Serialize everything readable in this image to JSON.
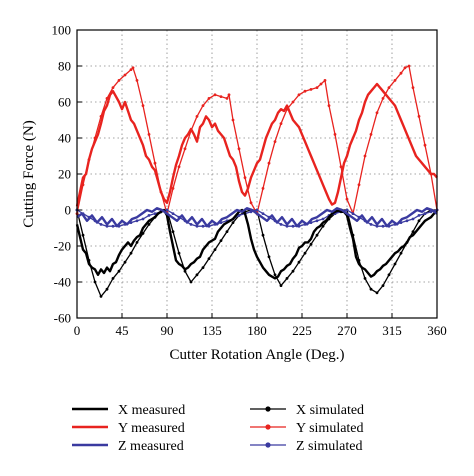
{
  "chart_data": {
    "type": "line",
    "title": "",
    "xlabel": "Cutter Rotation Angle (Deg.)",
    "ylabel": "Cutting Force (N)",
    "xlim": [
      0,
      360
    ],
    "ylim": [
      -60,
      100
    ],
    "xticks": [
      0,
      45,
      90,
      135,
      180,
      225,
      270,
      315,
      360
    ],
    "yticks": [
      -60,
      -40,
      -20,
      0,
      20,
      40,
      60,
      80,
      100
    ],
    "grid": "dotted",
    "legend_position": "bottom",
    "colors": {
      "x": "#000000",
      "y": "#e8231f",
      "z": "#3a3aa0"
    },
    "series": [
      {
        "name": "X measured",
        "color": "#000000",
        "style": "measured",
        "x": [
          0,
          3,
          6,
          9,
          12,
          15,
          18,
          21,
          24,
          27,
          30,
          33,
          36,
          39,
          42,
          45,
          48,
          51,
          54,
          57,
          60,
          63,
          66,
          69,
          72,
          75,
          78,
          81,
          84,
          87,
          90,
          93,
          96,
          99,
          102,
          105,
          108,
          111,
          114,
          117,
          120,
          123,
          126,
          129,
          132,
          135,
          138,
          141,
          144,
          147,
          150,
          153,
          156,
          159,
          162,
          165,
          168,
          171,
          174,
          177,
          180,
          183,
          186,
          189,
          192,
          195,
          198,
          201,
          204,
          207,
          210,
          213,
          216,
          219,
          222,
          225,
          228,
          231,
          234,
          237,
          240,
          243,
          246,
          249,
          252,
          255,
          258,
          261,
          264,
          267,
          270,
          273,
          276,
          279,
          282,
          285,
          288,
          291,
          294,
          297,
          300,
          303,
          306,
          309,
          312,
          315,
          318,
          321,
          324,
          327,
          330,
          333,
          336,
          339,
          342,
          345,
          348,
          351,
          354,
          357,
          360
        ],
        "y": [
          -8,
          -15,
          -22,
          -24,
          -30,
          -32,
          -33,
          -36,
          -33,
          -35,
          -32,
          -34,
          -30,
          -29,
          -25,
          -22,
          -20,
          -18,
          -20,
          -17,
          -15,
          -14,
          -10,
          -8,
          -6,
          -5,
          -4,
          -2,
          -1,
          0,
          -3,
          -12,
          -20,
          -28,
          -30,
          -31,
          -33,
          -32,
          -30,
          -29,
          -27,
          -26,
          -22,
          -20,
          -18,
          -17,
          -16,
          -12,
          -10,
          -8,
          -7,
          -6,
          -5,
          -3,
          -1,
          0,
          -2,
          -8,
          -16,
          -22,
          -26,
          -29,
          -32,
          -34,
          -36,
          -37,
          -38,
          -37,
          -34,
          -33,
          -31,
          -30,
          -27,
          -25,
          -21,
          -20,
          -18,
          -18,
          -16,
          -12,
          -10,
          -9,
          -7,
          -6,
          -4,
          -2,
          -1,
          0,
          -1,
          -1,
          -3,
          -10,
          -16,
          -26,
          -30,
          -32,
          -33,
          -35,
          -37,
          -36,
          -34,
          -33,
          -31,
          -30,
          -28,
          -26,
          -24,
          -23,
          -21,
          -20,
          -18,
          -15,
          -14,
          -12,
          -10,
          -8,
          -6,
          -5,
          -4,
          -2,
          -1
        ]
      },
      {
        "name": "Y measured",
        "color": "#e8231f",
        "style": "measured",
        "x": [
          0,
          3,
          6,
          9,
          12,
          15,
          18,
          21,
          24,
          27,
          30,
          33,
          36,
          39,
          42,
          45,
          48,
          51,
          54,
          57,
          60,
          63,
          66,
          69,
          72,
          75,
          78,
          81,
          84,
          87,
          90,
          93,
          96,
          99,
          102,
          105,
          108,
          111,
          114,
          117,
          120,
          123,
          126,
          129,
          132,
          135,
          138,
          141,
          144,
          147,
          150,
          153,
          156,
          159,
          162,
          165,
          168,
          171,
          174,
          177,
          180,
          183,
          186,
          189,
          192,
          195,
          198,
          201,
          204,
          207,
          210,
          213,
          216,
          219,
          222,
          225,
          228,
          231,
          234,
          237,
          240,
          243,
          246,
          249,
          252,
          255,
          258,
          261,
          264,
          267,
          270,
          273,
          276,
          279,
          282,
          285,
          288,
          291,
          294,
          297,
          300,
          303,
          306,
          309,
          312,
          315,
          318,
          321,
          324,
          327,
          330,
          333,
          336,
          339,
          342,
          345,
          348,
          351,
          354,
          357,
          360
        ],
        "y": [
          2,
          10,
          18,
          20,
          28,
          34,
          38,
          42,
          48,
          55,
          58,
          64,
          66,
          63,
          60,
          56,
          60,
          55,
          50,
          48,
          44,
          40,
          36,
          30,
          28,
          24,
          22,
          16,
          10,
          6,
          4,
          10,
          18,
          25,
          30,
          36,
          40,
          42,
          45,
          42,
          38,
          46,
          48,
          52,
          50,
          46,
          48,
          44,
          42,
          40,
          35,
          30,
          28,
          24,
          16,
          10,
          8,
          12,
          18,
          22,
          26,
          28,
          34,
          40,
          44,
          48,
          50,
          54,
          56,
          55,
          58,
          54,
          50,
          48,
          46,
          42,
          38,
          34,
          30,
          26,
          22,
          18,
          14,
          10,
          6,
          3,
          4,
          10,
          18,
          26,
          30,
          36,
          40,
          44,
          50,
          54,
          60,
          64,
          66,
          68,
          70,
          68,
          66,
          64,
          62,
          60,
          58,
          54,
          50,
          46,
          42,
          38,
          34,
          30,
          28,
          26,
          24,
          22,
          20,
          20,
          18
        ]
      },
      {
        "name": "Z measured",
        "color": "#3a3aa0",
        "style": "measured",
        "x": [
          0,
          5,
          10,
          15,
          20,
          25,
          30,
          35,
          40,
          45,
          50,
          55,
          60,
          65,
          70,
          75,
          80,
          85,
          90,
          95,
          100,
          105,
          110,
          115,
          120,
          125,
          130,
          135,
          140,
          145,
          150,
          155,
          160,
          165,
          170,
          175,
          180,
          185,
          190,
          195,
          200,
          205,
          210,
          215,
          220,
          225,
          230,
          235,
          240,
          245,
          250,
          255,
          260,
          265,
          270,
          275,
          280,
          285,
          290,
          295,
          300,
          305,
          310,
          315,
          320,
          325,
          330,
          335,
          340,
          345,
          350,
          355,
          360
        ],
        "y": [
          -4,
          -2,
          -6,
          -3,
          -7,
          -4,
          -8,
          -5,
          -9,
          -6,
          -8,
          -5,
          -4,
          -2,
          0,
          -1,
          1,
          0,
          -2,
          -4,
          -6,
          -3,
          -7,
          -4,
          -8,
          -5,
          -9,
          -6,
          -8,
          -5,
          -4,
          -2,
          0,
          -1,
          1,
          0,
          -2,
          -4,
          -6,
          -3,
          -7,
          -4,
          -8,
          -5,
          -9,
          -6,
          -8,
          -5,
          -4,
          -2,
          0,
          -1,
          1,
          0,
          -2,
          -4,
          -6,
          -3,
          -7,
          -4,
          -8,
          -5,
          -9,
          -6,
          -8,
          -5,
          -4,
          -2,
          0,
          -1,
          1,
          0,
          -2
        ]
      },
      {
        "name": "X simulated",
        "color": "#000000",
        "style": "simulated",
        "x": [
          0,
          6,
          12,
          18,
          24,
          30,
          36,
          42,
          48,
          54,
          60,
          66,
          72,
          78,
          84,
          90,
          96,
          102,
          108,
          114,
          120,
          126,
          132,
          138,
          144,
          150,
          156,
          162,
          168,
          174,
          180,
          186,
          192,
          198,
          204,
          210,
          216,
          222,
          228,
          234,
          240,
          246,
          252,
          258,
          264,
          270,
          276,
          282,
          288,
          294,
          300,
          306,
          312,
          318,
          324,
          330,
          336,
          342,
          348,
          354,
          360
        ],
        "y": [
          0,
          -14,
          -28,
          -40,
          -48,
          -44,
          -38,
          -34,
          -29,
          -24,
          -18,
          -13,
          -8,
          -4,
          -1,
          0,
          -12,
          -24,
          -34,
          -40,
          -36,
          -32,
          -27,
          -22,
          -17,
          -12,
          -7,
          -3,
          -1,
          0,
          0,
          -14,
          -26,
          -36,
          -42,
          -38,
          -34,
          -29,
          -24,
          -19,
          -14,
          -9,
          -5,
          -2,
          0,
          0,
          -14,
          -28,
          -38,
          -44,
          -46,
          -42,
          -36,
          -30,
          -24,
          -18,
          -12,
          -6,
          -2,
          0,
          0
        ]
      },
      {
        "name": "Y simulated",
        "color": "#e8231f",
        "style": "simulated",
        "x": [
          0,
          6,
          12,
          18,
          24,
          30,
          36,
          42,
          48,
          54,
          56,
          60,
          66,
          72,
          78,
          84,
          90,
          96,
          102,
          108,
          114,
          120,
          126,
          132,
          138,
          144,
          150,
          152,
          156,
          162,
          168,
          174,
          180,
          186,
          192,
          198,
          204,
          210,
          216,
          222,
          228,
          234,
          240,
          244,
          248,
          252,
          258,
          264,
          270,
          276,
          282,
          288,
          294,
          300,
          306,
          312,
          318,
          324,
          328,
          332,
          336,
          342,
          348,
          354,
          360
        ],
        "y": [
          -2,
          14,
          28,
          40,
          52,
          62,
          68,
          72,
          75,
          78,
          79,
          72,
          58,
          42,
          26,
          10,
          -2,
          12,
          24,
          34,
          44,
          52,
          58,
          62,
          64,
          63,
          62,
          64,
          50,
          34,
          18,
          4,
          -2,
          12,
          26,
          38,
          48,
          56,
          60,
          64,
          66,
          67,
          68,
          70,
          72,
          58,
          42,
          24,
          6,
          -2,
          14,
          30,
          42,
          54,
          62,
          68,
          72,
          76,
          79,
          80,
          68,
          52,
          36,
          20,
          0
        ]
      },
      {
        "name": "Z simulated",
        "color": "#3a3aa0",
        "style": "simulated",
        "x": [
          0,
          6,
          12,
          18,
          24,
          30,
          36,
          42,
          48,
          54,
          60,
          66,
          72,
          78,
          84,
          90,
          96,
          102,
          108,
          114,
          120,
          126,
          132,
          138,
          144,
          150,
          156,
          162,
          168,
          174,
          180,
          186,
          192,
          198,
          204,
          210,
          216,
          222,
          228,
          234,
          240,
          246,
          252,
          258,
          264,
          270,
          276,
          282,
          288,
          294,
          300,
          306,
          312,
          318,
          324,
          330,
          336,
          342,
          348,
          354,
          360
        ],
        "y": [
          0,
          -2,
          -4,
          -6,
          -8,
          -9,
          -9,
          -9,
          -8,
          -7,
          -6,
          -5,
          -3,
          -2,
          -1,
          0,
          -2,
          -4,
          -6,
          -8,
          -9,
          -9,
          -9,
          -8,
          -7,
          -6,
          -5,
          -3,
          -2,
          -1,
          0,
          -2,
          -4,
          -6,
          -8,
          -9,
          -9,
          -9,
          -8,
          -7,
          -6,
          -5,
          -3,
          -2,
          -1,
          0,
          -2,
          -4,
          -6,
          -8,
          -9,
          -9,
          -9,
          -8,
          -7,
          -6,
          -5,
          -3,
          -2,
          -1,
          0
        ]
      }
    ]
  }
}
